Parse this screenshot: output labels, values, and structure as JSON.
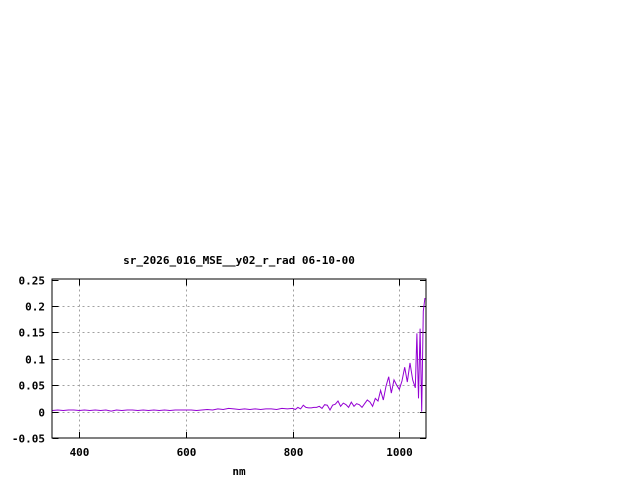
{
  "chart_data": {
    "type": "line",
    "title": "sr_2026_016_MSE__y02_r_rad 06-10-00",
    "xlabel": "nm",
    "ylabel": "",
    "xlim": [
      350,
      1050
    ],
    "ylim": [
      -0.05,
      0.25
    ],
    "xticks": [
      400,
      600,
      800,
      1000
    ],
    "yticks": [
      -0.05,
      0,
      0.05,
      0.1,
      0.15,
      0.2,
      0.25
    ],
    "ytick_labels": [
      "-0.05",
      "0",
      "0.05",
      "0.1",
      "0.15",
      "0.2",
      "0.25"
    ],
    "grid": true,
    "line_color": "#9400d3",
    "series": [
      {
        "x": [
          350,
          360,
          370,
          380,
          390,
          400,
          410,
          420,
          430,
          440,
          450,
          460,
          470,
          480,
          490,
          500,
          510,
          520,
          530,
          540,
          550,
          560,
          570,
          580,
          590,
          600,
          610,
          620,
          630,
          640,
          650,
          660,
          670,
          680,
          690,
          700,
          710,
          720,
          730,
          740,
          750,
          760,
          770,
          780,
          790,
          800,
          805,
          810,
          815,
          820,
          825,
          830,
          835,
          840,
          845,
          850,
          855,
          860,
          865,
          870,
          875,
          880,
          885,
          890,
          895,
          900,
          905,
          910,
          915,
          920,
          925,
          930,
          935,
          940,
          945,
          950,
          955,
          960,
          965,
          970,
          975,
          980,
          985,
          990,
          995,
          1000,
          1005,
          1010,
          1015,
          1020,
          1025,
          1030,
          1033,
          1036,
          1039,
          1042,
          1045,
          1048
        ],
        "y": [
          0.002,
          0.003,
          0.002,
          0.003,
          0.003,
          0.002,
          0.003,
          0.002,
          0.003,
          0.002,
          0.003,
          0.001,
          0.003,
          0.002,
          0.003,
          0.003,
          0.002,
          0.003,
          0.002,
          0.003,
          0.002,
          0.003,
          0.002,
          0.003,
          0.003,
          0.003,
          0.003,
          0.002,
          0.003,
          0.004,
          0.003,
          0.005,
          0.004,
          0.006,
          0.005,
          0.004,
          0.005,
          0.004,
          0.005,
          0.004,
          0.005,
          0.005,
          0.004,
          0.006,
          0.005,
          0.006,
          0.004,
          0.008,
          0.005,
          0.012,
          0.008,
          0.007,
          0.007,
          0.008,
          0.008,
          0.01,
          0.006,
          0.013,
          0.012,
          0.003,
          0.012,
          0.014,
          0.02,
          0.01,
          0.016,
          0.013,
          0.008,
          0.018,
          0.01,
          0.015,
          0.013,
          0.008,
          0.015,
          0.022,
          0.018,
          0.01,
          0.025,
          0.02,
          0.04,
          0.022,
          0.048,
          0.066,
          0.035,
          0.06,
          0.05,
          0.042,
          0.058,
          0.084,
          0.056,
          0.092,
          0.06,
          0.045,
          0.148,
          0.025,
          0.157,
          0.0,
          0.19,
          0.215
        ]
      }
    ]
  }
}
